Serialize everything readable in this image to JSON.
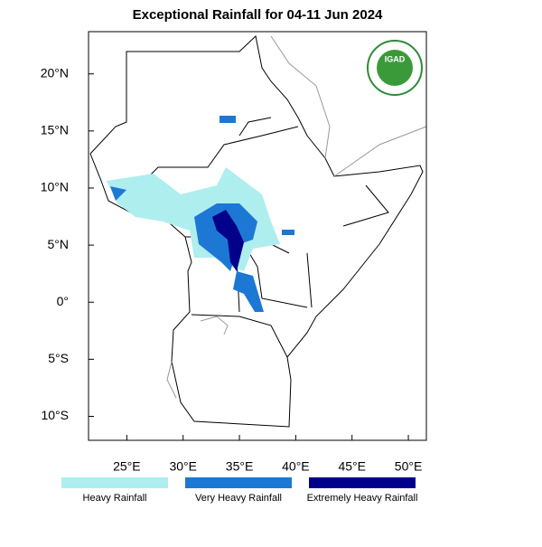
{
  "map": {
    "title": "Exceptional Rainfall for 04-11 Jun 2024",
    "logo_text": "IGAD",
    "xlim": [
      21.6,
      51.6
    ],
    "ylim": [
      -12.1,
      23.7
    ],
    "xticks": [
      {
        "value": 25,
        "label": "25°E"
      },
      {
        "value": 30,
        "label": "30°E"
      },
      {
        "value": 35,
        "label": "35°E"
      },
      {
        "value": 40,
        "label": "40°E"
      },
      {
        "value": 45,
        "label": "45°E"
      },
      {
        "value": 50,
        "label": "50°E"
      }
    ],
    "yticks": [
      {
        "value": 20,
        "label": "20°N"
      },
      {
        "value": 15,
        "label": "15°N"
      },
      {
        "value": 10,
        "label": "10°N"
      },
      {
        "value": 5,
        "label": "5°N"
      },
      {
        "value": 0,
        "label": "0°"
      },
      {
        "value": -5,
        "label": "5°S"
      },
      {
        "value": -10,
        "label": "10°S"
      }
    ],
    "legend": [
      {
        "label": "Heavy Rainfall",
        "color": "#aeeeee"
      },
      {
        "label": "Very Heavy Rainfall",
        "color": "#1c78d4"
      },
      {
        "label": "Extremely Heavy Rainfall",
        "color": "#00008b"
      }
    ]
  }
}
